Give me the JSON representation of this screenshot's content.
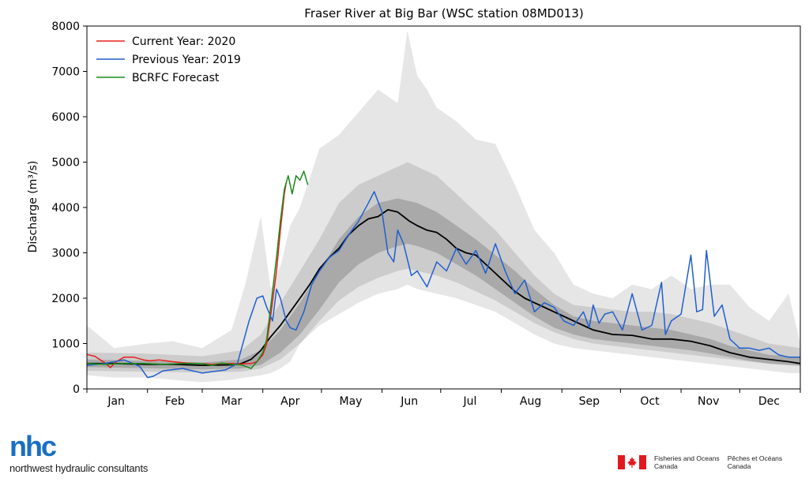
{
  "chart_data": {
    "type": "line",
    "title": "Fraser River at Big Bar (WSC station 08MD013)",
    "ylabel": "Discharge (m³/s)",
    "xlabel": "",
    "ylim": [
      0,
      8000
    ],
    "yticks": [
      0,
      1000,
      2000,
      3000,
      4000,
      5000,
      6000,
      7000,
      8000
    ],
    "xlim": [
      1,
      366
    ],
    "month_labels": [
      {
        "label": "Jan",
        "day": 16
      },
      {
        "label": "Feb",
        "day": 46
      },
      {
        "label": "Mar",
        "day": 75
      },
      {
        "label": "Apr",
        "day": 105
      },
      {
        "label": "May",
        "day": 136
      },
      {
        "label": "Jun",
        "day": 166
      },
      {
        "label": "Jul",
        "day": 197
      },
      {
        "label": "Aug",
        "day": 228
      },
      {
        "label": "Sep",
        "day": 258
      },
      {
        "label": "Oct",
        "day": 289
      },
      {
        "label": "Nov",
        "day": 319
      },
      {
        "label": "Dec",
        "day": 350
      }
    ],
    "month_boundaries": [
      1,
      32,
      60,
      91,
      121,
      152,
      182,
      213,
      244,
      274,
      305,
      335,
      366
    ],
    "legend_position": "top-left",
    "grid": false,
    "bands": [
      {
        "name": "min-max",
        "color": "#e6e6e6",
        "x": [
          1,
          15,
          32,
          45,
          60,
          75,
          82,
          90,
          95,
          100,
          105,
          110,
          120,
          130,
          140,
          150,
          160,
          165,
          170,
          175,
          180,
          190,
          200,
          210,
          220,
          230,
          240,
          250,
          260,
          270,
          280,
          290,
          300,
          310,
          320,
          330,
          340,
          350,
          360,
          366
        ],
        "upper": [
          1400,
          900,
          1000,
          1050,
          900,
          1300,
          2300,
          3800,
          2200,
          2700,
          3600,
          4000,
          5300,
          5600,
          6100,
          6600,
          6300,
          7900,
          6900,
          6600,
          6200,
          5900,
          5500,
          5400,
          4500,
          3500,
          3000,
          2300,
          2100,
          2000,
          2300,
          2200,
          2500,
          2200,
          2300,
          2300,
          1800,
          1500,
          2100,
          1000
        ],
        "lower": [
          300,
          250,
          250,
          200,
          150,
          200,
          250,
          300,
          350,
          450,
          600,
          1000,
          1400,
          1650,
          1900,
          2100,
          2200,
          2300,
          2200,
          2150,
          2100,
          2000,
          1850,
          1700,
          1450,
          1200,
          1000,
          900,
          850,
          800,
          750,
          700,
          650,
          600,
          550,
          500,
          450,
          400,
          350,
          350
        ]
      },
      {
        "name": "10th-90th percentile",
        "color": "#cccccc",
        "x": [
          1,
          30,
          60,
          80,
          90,
          100,
          110,
          120,
          130,
          140,
          150,
          160,
          165,
          170,
          180,
          190,
          200,
          210,
          220,
          230,
          240,
          250,
          260,
          270,
          280,
          290,
          300,
          310,
          320,
          330,
          340,
          350,
          366
        ],
        "upper": [
          800,
          780,
          720,
          850,
          1200,
          1900,
          2600,
          3300,
          4100,
          4500,
          4700,
          4900,
          5000,
          4900,
          4700,
          4300,
          3900,
          3500,
          3000,
          2500,
          2100,
          1850,
          1800,
          1750,
          1700,
          1700,
          1650,
          1550,
          1450,
          1300,
          1150,
          1000,
          900
        ],
        "lower": [
          400,
          380,
          360,
          380,
          450,
          650,
          1000,
          1500,
          1950,
          2250,
          2450,
          2600,
          2650,
          2600,
          2500,
          2350,
          2150,
          1950,
          1700,
          1450,
          1250,
          1100,
          1000,
          950,
          900,
          850,
          800,
          750,
          700,
          650,
          600,
          550,
          500
        ]
      },
      {
        "name": "25th-75th percentile",
        "color": "#a9a9a9",
        "x": [
          1,
          30,
          60,
          80,
          90,
          100,
          110,
          120,
          130,
          140,
          150,
          160,
          165,
          170,
          180,
          190,
          200,
          210,
          220,
          230,
          240,
          250,
          260,
          270,
          280,
          290,
          300,
          310,
          320,
          330,
          340,
          350,
          366
        ],
        "upper": [
          650,
          620,
          580,
          650,
          850,
          1300,
          1900,
          2600,
          3300,
          3800,
          4100,
          4200,
          4150,
          4100,
          3900,
          3600,
          3300,
          2950,
          2600,
          2200,
          1850,
          1600,
          1500,
          1450,
          1400,
          1350,
          1300,
          1200,
          1100,
          950,
          850,
          750,
          700
        ],
        "lower": [
          480,
          460,
          430,
          450,
          530,
          800,
          1200,
          1750,
          2350,
          2750,
          3000,
          3150,
          3200,
          3150,
          3000,
          2750,
          2500,
          2200,
          1900,
          1600,
          1350,
          1200,
          1100,
          1050,
          1000,
          950,
          900,
          850,
          780,
          700,
          620,
          560,
          520
        ]
      }
    ],
    "series": [
      {
        "name": "Median",
        "color": "#000000",
        "in_legend": false,
        "x": [
          1,
          15,
          32,
          45,
          60,
          75,
          80,
          85,
          90,
          95,
          100,
          105,
          110,
          115,
          120,
          125,
          130,
          135,
          140,
          145,
          150,
          155,
          160,
          163,
          166,
          170,
          175,
          180,
          185,
          190,
          195,
          200,
          205,
          210,
          215,
          220,
          225,
          230,
          235,
          240,
          245,
          250,
          255,
          260,
          265,
          270,
          280,
          290,
          300,
          310,
          320,
          330,
          340,
          350,
          360,
          366
        ],
        "y": [
          560,
          560,
          540,
          540,
          520,
          530,
          560,
          650,
          850,
          1150,
          1400,
          1700,
          2000,
          2300,
          2650,
          2900,
          3100,
          3400,
          3600,
          3750,
          3800,
          3950,
          3900,
          3800,
          3700,
          3600,
          3500,
          3450,
          3300,
          3100,
          3000,
          2950,
          2750,
          2550,
          2350,
          2150,
          2000,
          1900,
          1800,
          1700,
          1600,
          1500,
          1400,
          1300,
          1250,
          1200,
          1180,
          1100,
          1100,
          1050,
          950,
          800,
          700,
          650,
          600,
          560
        ]
      },
      {
        "name": "Current Year: 2020",
        "color": "#e8201c",
        "in_legend": true,
        "x": [
          1,
          5,
          10,
          13,
          16,
          20,
          25,
          30,
          33,
          38,
          45,
          52,
          60,
          65,
          70,
          75,
          80,
          85,
          88,
          91,
          93,
          95,
          98,
          100,
          102,
          103
        ],
        "y": [
          760,
          720,
          580,
          470,
          600,
          700,
          700,
          640,
          620,
          640,
          600,
          570,
          560,
          540,
          560,
          560,
          550,
          560,
          600,
          750,
          1000,
          1600,
          2600,
          3500,
          4300,
          4550
        ]
      },
      {
        "name": "Previous Year: 2019",
        "color": "#1f5fd0",
        "in_legend": true,
        "x": [
          1,
          10,
          20,
          28,
          32,
          35,
          40,
          50,
          60,
          65,
          72,
          78,
          84,
          88,
          91,
          93,
          96,
          98,
          100,
          103,
          105,
          108,
          112,
          116,
          120,
          125,
          130,
          135,
          140,
          145,
          148,
          152,
          155,
          158,
          160,
          163,
          167,
          170,
          175,
          180,
          185,
          190,
          195,
          200,
          205,
          210,
          215,
          220,
          225,
          230,
          235,
          240,
          245,
          250,
          255,
          258,
          260,
          263,
          266,
          270,
          275,
          280,
          285,
          290,
          295,
          297,
          300,
          305,
          310,
          313,
          316,
          318,
          322,
          326,
          330,
          335,
          340,
          345,
          350,
          355,
          360,
          366
        ],
        "y": [
          520,
          560,
          640,
          500,
          250,
          280,
          400,
          450,
          350,
          380,
          420,
          560,
          1500,
          2000,
          2050,
          1800,
          1500,
          2200,
          2000,
          1500,
          1350,
          1300,
          1700,
          2300,
          2600,
          2900,
          3050,
          3400,
          3700,
          4100,
          4350,
          3900,
          3000,
          2800,
          3500,
          3200,
          2500,
          2600,
          2250,
          2800,
          2600,
          3100,
          2750,
          3050,
          2550,
          3200,
          2600,
          2100,
          2400,
          1700,
          1900,
          1800,
          1500,
          1400,
          1700,
          1350,
          1850,
          1450,
          1650,
          1700,
          1300,
          2100,
          1300,
          1400,
          2350,
          1200,
          1500,
          1650,
          2950,
          1700,
          1750,
          3050,
          1600,
          1850,
          1100,
          900,
          900,
          850,
          900,
          750,
          700,
          700
        ]
      },
      {
        "name": "BCRFC Forecast",
        "color": "#1a8a1a",
        "in_legend": true,
        "x": [
          1,
          10,
          20,
          30,
          40,
          50,
          60,
          65,
          70,
          75,
          80,
          85,
          88,
          91,
          93,
          95,
          98,
          100,
          102,
          104,
          106,
          108,
          110,
          112,
          114
        ],
        "y": [
          560,
          540,
          560,
          560,
          540,
          560,
          560,
          520,
          570,
          540,
          530,
          450,
          600,
          800,
          1100,
          1800,
          2900,
          3700,
          4400,
          4700,
          4300,
          4700,
          4600,
          4800,
          4500
        ]
      }
    ]
  },
  "branding": {
    "nhc_logo_text": "nhc",
    "nhc_name": "northwest hydraulic consultants",
    "dfo_en_line1": "Fisheries and Oceans",
    "dfo_en_line2": "Canada",
    "dfo_fr_line1": "Pêches et Océans",
    "dfo_fr_line2": "Canada"
  }
}
